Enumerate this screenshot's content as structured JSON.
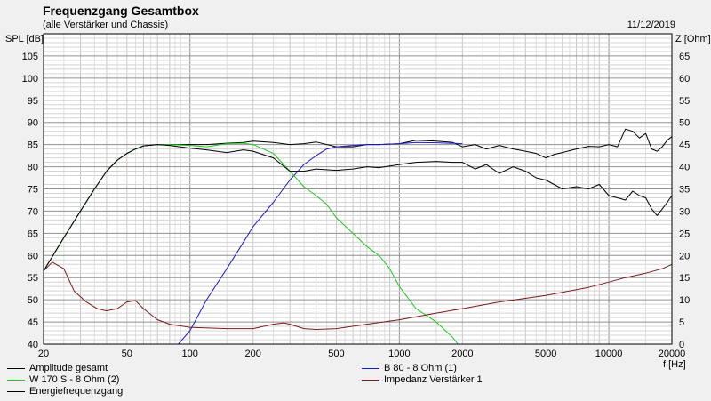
{
  "title": "Frequenzgang Gesamtbox",
  "subtitle": "(alle Verstärker und Chassis)",
  "date": "11/12/2019",
  "chart_data": {
    "type": "line",
    "title": "Frequenzgang Gesamtbox",
    "subtitle": "(alle Verstärker und Chassis)",
    "xlabel": "f [Hz]",
    "ylabel_left": "SPL [dB]",
    "ylabel_right": "Z [Ohm]",
    "x_scale": "log",
    "xlim": [
      20,
      20000
    ],
    "ylim_left": [
      40,
      110
    ],
    "ylim_right": [
      0,
      70
    ],
    "grid": true,
    "legend_position": "bottom",
    "x_ticks": [
      20,
      50,
      100,
      200,
      500,
      1000,
      2000,
      5000,
      10000,
      20000
    ],
    "x_tick_labels": [
      "20",
      "50",
      "100",
      "200",
      "500",
      "1000",
      "2000",
      "5000",
      "10000",
      "20000"
    ],
    "y_ticks_left": [
      40,
      45,
      50,
      55,
      60,
      65,
      70,
      75,
      80,
      85,
      90,
      95,
      100,
      105
    ],
    "y_tick_labels_left": [
      "40",
      "45",
      "50",
      "55",
      "60",
      "65",
      "70",
      "75",
      "80",
      "85",
      "90",
      "95",
      "100",
      "105"
    ],
    "y_ticks_right": [
      0,
      5,
      10,
      15,
      20,
      25,
      30,
      35,
      40,
      45,
      50,
      55,
      60,
      65
    ],
    "y_tick_labels_right": [
      "0",
      "5",
      "10",
      "15",
      "20",
      "25",
      "30",
      "35",
      "40",
      "45",
      "50",
      "55",
      "60",
      "65"
    ],
    "series": [
      {
        "name": "Amplitude gesamt",
        "color": "#000000",
        "axis": "left",
        "x": [
          20,
          25,
          30,
          35,
          40,
          45,
          50,
          55,
          60,
          70,
          80,
          100,
          120,
          150,
          180,
          200,
          250,
          300,
          350,
          400,
          500,
          600,
          700,
          800,
          1000,
          1200,
          1500,
          1800,
          2000,
          2300,
          2600,
          3000,
          3500,
          4000,
          4500,
          5000,
          5500,
          6000,
          7000,
          8000,
          9000,
          10000,
          11000,
          12000,
          13000,
          14000,
          15000,
          16000,
          17000,
          18000,
          19000,
          20000
        ],
        "y": [
          56.5,
          64,
          70,
          75,
          79,
          81.5,
          83,
          84,
          84.7,
          85,
          85,
          85,
          85,
          85.3,
          85.5,
          85.8,
          85.5,
          85,
          85.2,
          85.6,
          84.5,
          84.5,
          85,
          85,
          85.2,
          86,
          85.8,
          85.5,
          84.5,
          85,
          84,
          84.8,
          84,
          83.5,
          83,
          82,
          82.8,
          83.2,
          84,
          84.6,
          84.5,
          85,
          84.5,
          88.5,
          88,
          86.5,
          87.5,
          84,
          83.5,
          84.5,
          86,
          86.8
        ]
      },
      {
        "name": "B 80 - 8 Ohm (1)",
        "color": "#1a1ac8",
        "axis": "left",
        "x": [
          20,
          50,
          88,
          100,
          120,
          150,
          180,
          200,
          250,
          300,
          350,
          400,
          450,
          500,
          600,
          700,
          800,
          1000,
          1200,
          1500,
          2000
        ],
        "y": [
          40,
          40,
          40,
          43,
          50,
          57,
          63,
          66.5,
          72,
          77,
          80.5,
          82.5,
          84,
          84.5,
          84.8,
          85,
          85,
          85.2,
          85.5,
          85.4,
          85.2
        ]
      },
      {
        "name": "W 170 S - 8 Ohm (2)",
        "color": "#22c822",
        "axis": "left",
        "x": [
          20,
          25,
          30,
          35,
          40,
          45,
          50,
          55,
          60,
          70,
          80,
          100,
          120,
          150,
          180,
          200,
          250,
          300,
          350,
          400,
          450,
          500,
          600,
          700,
          800,
          900,
          1000,
          1200,
          1500,
          1800,
          1900,
          2000,
          3000,
          5000,
          10000,
          20000
        ],
        "y": [
          56.5,
          64,
          70,
          75,
          79,
          81.5,
          83,
          84,
          84.7,
          85,
          85,
          84.8,
          84.5,
          85.2,
          85.3,
          85,
          83,
          79,
          75.5,
          73.5,
          71.5,
          68.5,
          65,
          62,
          60,
          57,
          53,
          48,
          45,
          41.5,
          40,
          40,
          40,
          40,
          40,
          40
        ]
      },
      {
        "name": "Impedanz Verstärker 1",
        "color": "#7b1a1a",
        "axis": "right",
        "x": [
          20,
          22,
          25,
          28,
          32,
          36,
          40,
          45,
          50,
          55,
          60,
          70,
          80,
          100,
          150,
          200,
          250,
          280,
          300,
          350,
          400,
          500,
          700,
          1000,
          1500,
          2000,
          3000,
          5000,
          8000,
          10000,
          12000,
          15000,
          18000,
          20000
        ],
        "y": [
          16.5,
          18.5,
          17,
          12,
          9.5,
          8,
          7.5,
          8,
          9.5,
          9.8,
          8,
          5.5,
          4.5,
          3.8,
          3.5,
          3.5,
          4.5,
          4.8,
          4.5,
          3.5,
          3.3,
          3.5,
          4.5,
          5.5,
          7,
          8,
          9.5,
          11,
          12.8,
          14,
          15,
          16,
          17,
          18
        ]
      },
      {
        "name": "Energiefrequenzgang",
        "color": "#000000",
        "axis": "left",
        "x": [
          20,
          25,
          30,
          35,
          40,
          45,
          50,
          55,
          60,
          70,
          80,
          100,
          120,
          150,
          180,
          200,
          250,
          300,
          350,
          400,
          500,
          600,
          700,
          800,
          1000,
          1200,
          1500,
          1800,
          2000,
          2300,
          2600,
          3000,
          3500,
          4000,
          4500,
          5000,
          6000,
          7000,
          8000,
          9000,
          10000,
          11000,
          12000,
          13000,
          14000,
          15000,
          16000,
          17000,
          18000,
          19000,
          20000
        ],
        "y": [
          56.5,
          64,
          70,
          75,
          79,
          81.5,
          83,
          84,
          84.7,
          85,
          84.8,
          84.2,
          83.8,
          83.2,
          83.8,
          83.5,
          82,
          79,
          79,
          79.5,
          79.2,
          79.5,
          80,
          79.8,
          80.5,
          81,
          81.2,
          81,
          81,
          79.5,
          80.5,
          78.5,
          80,
          79,
          77.5,
          77,
          75,
          75.5,
          75,
          76,
          73.5,
          73,
          72.5,
          74.5,
          73.5,
          73,
          70.5,
          69,
          70.5,
          72,
          73.5
        ]
      }
    ]
  },
  "legend": [
    {
      "label": "Amplitude gesamt",
      "color": "#000000"
    },
    {
      "label": "B 80 - 8 Ohm (1)",
      "color": "#1a1ac8"
    },
    {
      "label": "W 170 S - 8 Ohm (2)",
      "color": "#22c822"
    },
    {
      "label": "Impedanz Verstärker 1",
      "color": "#7b1a1a"
    },
    {
      "label": "Energiefrequenzgang",
      "color": "#000000"
    }
  ]
}
